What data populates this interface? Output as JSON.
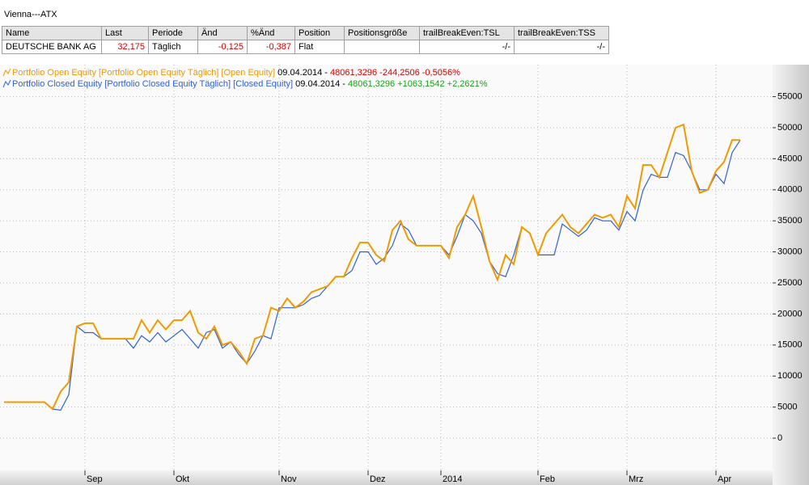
{
  "window": {
    "title": "Vienna---ATX"
  },
  "table": {
    "header": [
      "Name",
      "Last",
      "Periode",
      "Änd",
      "%Änd",
      "Position",
      "Positionsgröße",
      "trailBreakEven:TSL",
      "trailBreakEven:TSS"
    ],
    "rows": [
      [
        "DEUTSCHE BANK AG",
        "32,175",
        "Täglich",
        "-0,125",
        "-0,387",
        "Flat",
        null,
        "-/-",
        "-/-"
      ]
    ]
  },
  "chart_data": {
    "type": "line",
    "categories": [
      null,
      null,
      null,
      null,
      null,
      null,
      null,
      null,
      null,
      null,
      "Sep",
      null,
      null,
      null,
      null,
      null,
      null,
      null,
      null,
      null,
      null,
      "Okt",
      null,
      null,
      null,
      null,
      null,
      null,
      null,
      null,
      null,
      null,
      null,
      null,
      "Nov",
      null,
      null,
      null,
      null,
      null,
      null,
      null,
      null,
      null,
      null,
      "Dez",
      null,
      null,
      null,
      null,
      null,
      null,
      null,
      null,
      "2014",
      null,
      null,
      null,
      null,
      null,
      null,
      null,
      null,
      null,
      null,
      null,
      "Feb",
      null,
      null,
      null,
      null,
      null,
      null,
      null,
      null,
      null,
      null,
      "Mrz",
      null,
      null,
      null,
      null,
      null,
      null,
      null,
      null,
      null,
      null,
      "Apr",
      null,
      null,
      null
    ],
    "series": [
      {
        "name": "Portfolio Open Equity [Portfolio Open Equity  Täglich] [Open Equity]",
        "color": "#f09a00",
        "date": "09.04.2014 -",
        "summary": "48061,3296 -244,2506 -0,5056%",
        "summary_color": "#d40000",
        "values": [
          5800,
          5800,
          5800,
          5800,
          5800,
          5800,
          4700,
          7500,
          9000,
          18000,
          18500,
          18500,
          16000,
          16000,
          16000,
          16000,
          16000,
          19000,
          17000,
          19000,
          17500,
          19000,
          19000,
          20500,
          17000,
          16000,
          18000,
          15000,
          15500,
          14000,
          12000,
          16000,
          16500,
          21000,
          20500,
          22500,
          21000,
          22000,
          23500,
          24000,
          24500,
          26000,
          26000,
          29000,
          31500,
          31500,
          29500,
          28500,
          33500,
          35000,
          32000,
          31000,
          31000,
          31000,
          31000,
          29000,
          34000,
          36000,
          39000,
          34000,
          28500,
          25500,
          29500,
          28000,
          34000,
          33000,
          29500,
          33000,
          34500,
          36000,
          34000,
          33000,
          34500,
          36000,
          35500,
          36000,
          34000,
          39000,
          37000,
          44000,
          44000,
          42000,
          46000,
          50000,
          50500,
          43000,
          39500,
          40000,
          43000,
          44500,
          48000,
          48000
        ]
      },
      {
        "name": "Portfolio Closed Equity [Portfolio Closed Equity  Täglich] [Closed Equity]",
        "color": "#3060d8",
        "date": "09.04.2014 -",
        "summary": "48061,3296 +1063,1542 +2,2621%",
        "summary_color": "#1aa01a",
        "values": [
          5800,
          5800,
          5800,
          5800,
          5800,
          5800,
          4700,
          4500,
          7000,
          18000,
          17000,
          17000,
          16000,
          16000,
          16000,
          16000,
          14500,
          16500,
          15500,
          17000,
          15500,
          16500,
          17500,
          16000,
          14500,
          17000,
          17500,
          14500,
          15500,
          13500,
          12000,
          14000,
          16500,
          16000,
          21000,
          21000,
          21000,
          21500,
          22500,
          23000,
          24500,
          26000,
          26000,
          27000,
          30000,
          30000,
          28000,
          29000,
          31000,
          34500,
          33500,
          31000,
          31000,
          31000,
          31000,
          29500,
          32500,
          36000,
          35000,
          33000,
          28500,
          26500,
          26000,
          29500,
          34000,
          33000,
          29500,
          29500,
          29500,
          34500,
          33500,
          32500,
          33500,
          35500,
          35000,
          35000,
          33500,
          36500,
          35000,
          40000,
          42500,
          42000,
          42000,
          46000,
          45500,
          43000,
          40000,
          40000,
          42500,
          41000,
          46000,
          48000
        ]
      }
    ],
    "ylim": [
      -5200,
      59500
    ],
    "yticks": [
      0,
      5000,
      10000,
      15000,
      20000,
      25000,
      30000,
      35000,
      40000,
      45000,
      50000,
      55000
    ],
    "grid": true
  }
}
